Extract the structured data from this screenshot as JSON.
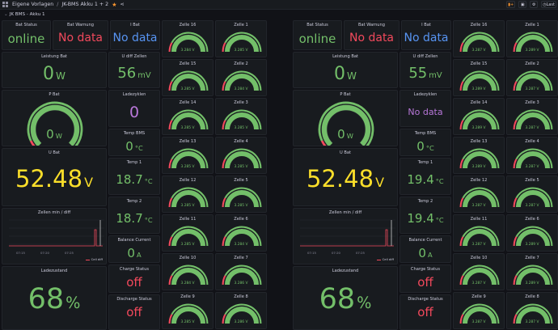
{
  "topbar": {
    "folder": "Eigene Vorlagen",
    "separator": "/",
    "dashboard": "JK-BMS Akku 1 + 2",
    "star_icon": "star-icon",
    "share_icon": "share-icon",
    "last_label": "Last"
  },
  "row": {
    "title": "JK BMS - Akku 1"
  },
  "colors": {
    "green": "#73bf69",
    "red": "#f2495c",
    "blue": "#5794f2",
    "yellow": "#fade2a",
    "purple": "#b877d9"
  },
  "battery1": {
    "bat_status": {
      "title": "Bat Status",
      "value": "online"
    },
    "bat_warnung": {
      "title": "Bat Warnung",
      "value": "No data"
    },
    "i_bat": {
      "title": "I Bat",
      "value": "No data"
    },
    "leistung": {
      "title": "Leistung Bat",
      "value": "0",
      "unit": "W"
    },
    "u_diff": {
      "title": "U diff Zellen",
      "value": "56",
      "unit": "mV"
    },
    "ladezyklen": {
      "title": "Ladezyklen",
      "value": "0"
    },
    "p_bat": {
      "title": "P Bat",
      "value": "0",
      "unit": "W"
    },
    "temp_bms": {
      "title": "Temp BMS",
      "value": "0",
      "unit": "°C"
    },
    "u_bat": {
      "title": "U Bat",
      "value": "52.48",
      "unit": "V"
    },
    "temp1": {
      "title": "Temp 1",
      "value": "18.7",
      "unit": "°C"
    },
    "temp2": {
      "title": "Temp 2",
      "value": "18.7",
      "unit": "°C"
    },
    "zellen_chart": {
      "title": "Zellen min / diff",
      "ticks": [
        "07:15",
        "07:20",
        "07:25"
      ],
      "legend": "Cell diff"
    },
    "balance": {
      "title": "Balance Current",
      "value": "0",
      "unit": "A"
    },
    "ladezustand": {
      "title": "Ladezustand",
      "value": "68",
      "unit": "%"
    },
    "charge_status": {
      "title": "Charge Status",
      "value": "off"
    },
    "discharge_status": {
      "title": "Discharge Status",
      "value": "off"
    },
    "cells_left": [
      {
        "title": "Zelle 16",
        "value": "3.284 V"
      },
      {
        "title": "Zelle 15",
        "value": "3.285 V"
      },
      {
        "title": "Zelle 14",
        "value": "3.285 V"
      },
      {
        "title": "Zelle 13",
        "value": "3.285 V"
      },
      {
        "title": "Zelle 12",
        "value": "3.285 V"
      },
      {
        "title": "Zelle 11",
        "value": "3.285 V"
      },
      {
        "title": "Zelle 10",
        "value": "3.284 V"
      },
      {
        "title": "Zelle 9",
        "value": "3.285 V"
      }
    ],
    "cells_right": [
      {
        "title": "Zelle 1",
        "value": "3.285 V"
      },
      {
        "title": "Zelle 2",
        "value": "3.284 V"
      },
      {
        "title": "Zelle 3",
        "value": "3.285 V"
      },
      {
        "title": "Zelle 4",
        "value": "3.285 V"
      },
      {
        "title": "Zelle 5",
        "value": "3.285 V"
      },
      {
        "title": "Zelle 6",
        "value": "3.284 V"
      },
      {
        "title": "Zelle 7",
        "value": "3.286 V"
      },
      {
        "title": "Zelle 8",
        "value": "3.286 V"
      }
    ]
  },
  "battery2": {
    "bat_status": {
      "title": "Bat Status",
      "value": "online"
    },
    "bat_warnung": {
      "title": "Bat Warnung",
      "value": "No data"
    },
    "i_bat": {
      "title": "I Bat",
      "value": "No data"
    },
    "leistung": {
      "title": "Leistung Bat",
      "value": "0",
      "unit": "W"
    },
    "u_diff": {
      "title": "U diff Zellen",
      "value": "55",
      "unit": "mV"
    },
    "ladezyklen": {
      "title": "Ladezyklen",
      "value": "No data"
    },
    "p_bat": {
      "title": "P Bat",
      "value": "0",
      "unit": "W"
    },
    "temp_bms": {
      "title": "Temp BMS",
      "value": "0",
      "unit": "°C"
    },
    "u_bat": {
      "title": "U Bat",
      "value": "52.48",
      "unit": "V"
    },
    "temp1": {
      "title": "Temp 1",
      "value": "19.4",
      "unit": "°C"
    },
    "temp2": {
      "title": "Temp 2",
      "value": "19.4",
      "unit": "°C"
    },
    "zellen_chart": {
      "title": "Zellen min / diff",
      "ticks": [
        "07:15",
        "07:20",
        "07:25"
      ],
      "legend": "Cell diff"
    },
    "balance": {
      "title": "Balance Current",
      "value": "0",
      "unit": "A"
    },
    "ladezustand": {
      "title": "Ladezustand",
      "value": "68",
      "unit": "%"
    },
    "charge_status": {
      "title": "Charge Status",
      "value": "off"
    },
    "discharge_status": {
      "title": "Discharge Status",
      "value": "off"
    },
    "cells_left": [
      {
        "title": "Zelle 16",
        "value": "3.287 V"
      },
      {
        "title": "Zelle 15",
        "value": "3.289 V"
      },
      {
        "title": "Zelle 14",
        "value": "3.289 V"
      },
      {
        "title": "Zelle 13",
        "value": "3.289 V"
      },
      {
        "title": "Zelle 12",
        "value": "3.287 V"
      },
      {
        "title": "Zelle 11",
        "value": "3.287 V"
      },
      {
        "title": "Zelle 10",
        "value": "3.287 V"
      },
      {
        "title": "Zelle 9",
        "value": "3.287 V"
      }
    ],
    "cells_right": [
      {
        "title": "Zelle 1",
        "value": "3.289 V"
      },
      {
        "title": "Zelle 2",
        "value": "3.287 V"
      },
      {
        "title": "Zelle 3",
        "value": "3.287 V"
      },
      {
        "title": "Zelle 4",
        "value": "3.287 V"
      },
      {
        "title": "Zelle 5",
        "value": "3.287 V"
      },
      {
        "title": "Zelle 6",
        "value": "3.289 V"
      },
      {
        "title": "Zelle 7",
        "value": "3.289 V"
      },
      {
        "title": "Zelle 8",
        "value": "3.287 V"
      }
    ]
  }
}
